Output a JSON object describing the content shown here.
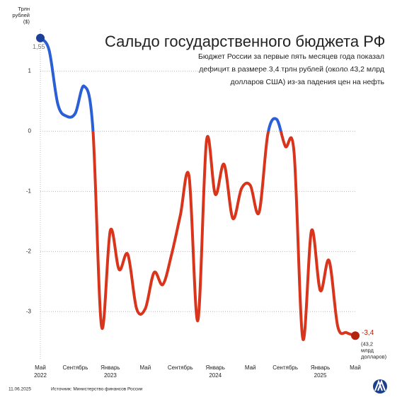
{
  "chart_data": {
    "type": "line",
    "title": "Сальдо государственного бюджета РФ",
    "subtitle": [
      "Бюджет России за первые пять месяцев года показал",
      "дефицит в размере 3,4 трлн рублей (около 43,2 млрд",
      "долларов США) из-за падения цен на нефть"
    ],
    "y_axis_label": [
      "Трлн",
      "рублей",
      "($)"
    ],
    "categories": [
      "Май 2022",
      null,
      null,
      null,
      "Сентябрь",
      null,
      null,
      null,
      "Январь 2023",
      null,
      null,
      null,
      "Май",
      null,
      null,
      null,
      "Сентябрь",
      null,
      null,
      null,
      "Январь 2024",
      null,
      null,
      null,
      "Май",
      null,
      null,
      null,
      "Сентябрь",
      null,
      null,
      null,
      "Январь 2025",
      null,
      null,
      null,
      "Май"
    ],
    "series": [
      {
        "name": "Сальдо",
        "color_positive": "#2b5fd6",
        "color_negative": "#d9341c",
        "values": [
          1.55,
          1.35,
          0.45,
          0.25,
          0.3,
          0.75,
          0.05,
          -3.25,
          -1.65,
          -2.3,
          -2.05,
          -2.95,
          -2.95,
          -2.35,
          -2.55,
          -2.05,
          -1.4,
          -0.75,
          -3.15,
          -0.15,
          -1.05,
          -0.55,
          -1.45,
          -0.95,
          -0.9,
          -1.35,
          -0.05,
          0.2,
          -0.25,
          -0.35,
          -3.45,
          -1.65,
          -2.65,
          -2.15,
          -3.25,
          -3.35,
          -3.4
        ]
      }
    ],
    "annotations": {
      "start_label": "1,55",
      "end_label": "-3,4",
      "end_note": [
        "(43,2",
        "млрд",
        "долларов)"
      ]
    },
    "ylim": [
      -3.75,
      1.7
    ],
    "yticks": [
      1,
      0,
      -1,
      -2,
      -3
    ],
    "grid": true,
    "footer": {
      "date": "11.06.2025",
      "source": "Источник: Министерство финансов России"
    }
  }
}
